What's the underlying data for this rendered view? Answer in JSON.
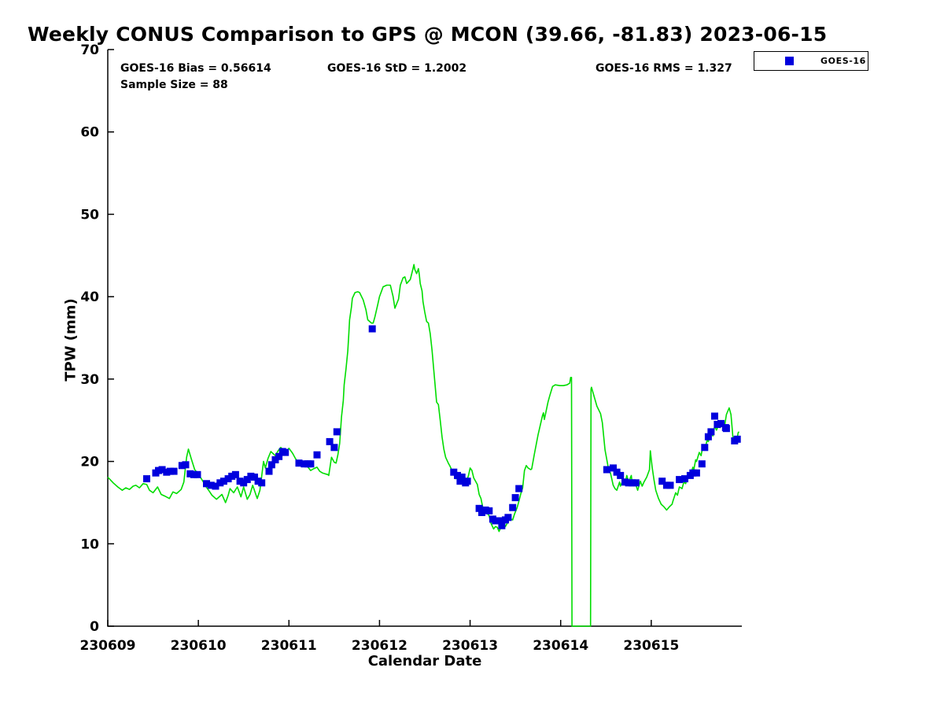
{
  "title": "Weekly CONUS Comparison to GPS @ MCON (39.66, -81.83) 2023-06-15",
  "stats": {
    "bias": "GOES-16 Bias = 0.56614",
    "std": "GOES-16 StD = 1.2002",
    "rms": "GOES-16 RMS = 1.327",
    "sample_size": "Sample Size = 88"
  },
  "legend": {
    "items": [
      {
        "label": "GOES-16",
        "marker_shape": "square",
        "marker_color": "#0000dd"
      }
    ],
    "position": "top-right"
  },
  "colors": {
    "gps_line": "#00dd00",
    "goes_marker": "#0000dd",
    "axis": "#000000",
    "background": "#ffffff"
  },
  "chart_data": {
    "type": "line",
    "title": "Weekly CONUS Comparison to GPS @ MCON (39.66, -81.83) 2023-06-15",
    "xlabel": "Calendar Date",
    "ylabel": "TPW (mm)",
    "x_unit": "days_since_230609",
    "xlim_days": [
      0,
      7
    ],
    "ylim": [
      0,
      70
    ],
    "y_ticks": [
      0,
      10,
      20,
      30,
      40,
      50,
      60,
      70
    ],
    "x_tick_days": [
      0,
      1,
      2,
      3,
      4,
      5,
      6
    ],
    "x_tick_labels": [
      "230609",
      "230610",
      "230611",
      "230612",
      "230613",
      "230614",
      "230615"
    ],
    "grid": false,
    "legend_position": "top-right-outside",
    "series": [
      {
        "name": "GPS",
        "type": "line",
        "color": "#00dd00",
        "x": [
          0.0,
          0.06,
          0.11,
          0.16,
          0.2,
          0.24,
          0.28,
          0.31,
          0.35,
          0.39,
          0.43,
          0.46,
          0.5,
          0.55,
          0.59,
          0.63,
          0.68,
          0.72,
          0.76,
          0.81,
          0.84,
          0.87,
          0.89,
          0.92,
          0.96,
          1.01,
          1.05,
          1.08,
          1.12,
          1.15,
          1.2,
          1.23,
          1.26,
          1.3,
          1.33,
          1.35,
          1.39,
          1.43,
          1.47,
          1.5,
          1.54,
          1.57,
          1.6,
          1.65,
          1.68,
          1.72,
          1.74,
          1.77,
          1.8,
          1.85,
          1.88,
          1.91,
          1.94,
          1.98,
          2.0,
          2.04,
          2.07,
          2.11,
          2.14,
          2.17,
          2.21,
          2.24,
          2.27,
          2.31,
          2.34,
          2.37,
          2.4,
          2.43,
          2.44,
          2.47,
          2.5,
          2.52,
          2.54,
          2.56,
          2.58,
          2.6,
          2.61,
          2.63,
          2.65,
          2.66,
          2.67,
          2.69,
          2.7,
          2.73,
          2.76,
          2.78,
          2.82,
          2.85,
          2.87,
          2.91,
          2.93,
          2.95,
          2.98,
          3.0,
          3.04,
          3.08,
          3.12,
          3.15,
          3.17,
          3.21,
          3.23,
          3.26,
          3.28,
          3.3,
          3.34,
          3.37,
          3.38,
          3.39,
          3.41,
          3.43,
          3.44,
          3.45,
          3.47,
          3.48,
          3.5,
          3.52,
          3.54,
          3.56,
          3.58,
          3.6,
          3.62,
          3.63,
          3.65,
          3.67,
          3.69,
          3.71,
          3.73,
          3.76,
          3.78,
          3.8,
          3.82,
          3.84,
          3.87,
          3.89,
          3.93,
          3.95,
          3.98,
          4.0,
          4.02,
          4.04,
          4.08,
          4.1,
          4.12,
          4.14,
          4.17,
          4.21,
          4.23,
          4.26,
          4.28,
          4.3,
          4.32,
          4.34,
          4.36,
          4.39,
          4.41,
          4.43,
          4.45,
          4.47,
          4.49,
          4.52,
          4.54,
          4.56,
          4.58,
          4.6,
          4.62,
          4.64,
          4.67,
          4.68,
          4.71,
          4.75,
          4.8,
          4.81,
          4.82,
          4.86,
          4.88,
          4.91,
          4.94,
          4.99,
          5.03,
          5.07,
          5.1,
          5.11,
          5.12,
          5.125,
          5.33,
          5.335,
          5.34,
          5.4,
          5.44,
          5.46,
          5.49,
          5.53,
          5.55,
          5.58,
          5.6,
          5.62,
          5.65,
          5.66,
          5.69,
          5.71,
          5.73,
          5.75,
          5.78,
          5.79,
          5.82,
          5.85,
          5.88,
          5.9,
          5.92,
          5.95,
          5.98,
          5.99,
          6.01,
          6.03,
          6.05,
          6.08,
          6.11,
          6.14,
          6.17,
          6.2,
          6.23,
          6.24,
          6.27,
          6.29,
          6.31,
          6.34,
          6.36,
          6.38,
          6.42,
          6.43,
          6.46,
          6.47,
          6.49,
          6.5,
          6.53,
          6.55,
          6.57,
          6.59,
          6.62,
          6.63,
          6.66,
          6.68,
          6.7,
          6.72,
          6.75,
          6.76,
          6.79,
          6.81,
          6.83,
          6.86,
          6.88,
          6.89,
          6.9,
          6.92,
          6.94,
          6.95,
          6.96,
          6.97
        ],
        "y": [
          18.1,
          17.4,
          16.9,
          16.5,
          16.8,
          16.6,
          17.0,
          17.1,
          16.8,
          17.3,
          17.2,
          16.5,
          16.2,
          16.9,
          16.0,
          15.8,
          15.5,
          16.3,
          16.1,
          16.6,
          17.5,
          20.5,
          21.5,
          20.4,
          19.0,
          18.3,
          17.6,
          17.0,
          16.4,
          15.9,
          15.4,
          15.7,
          16.0,
          15.0,
          15.9,
          16.7,
          16.2,
          16.9,
          15.7,
          16.9,
          15.4,
          16.0,
          17.1,
          15.5,
          16.5,
          20.0,
          19.2,
          20.4,
          21.2,
          20.7,
          21.3,
          21.7,
          21.4,
          21.3,
          21.6,
          21.0,
          20.4,
          19.7,
          19.5,
          19.7,
          19.3,
          18.9,
          19.1,
          19.3,
          18.8,
          18.6,
          18.5,
          18.4,
          18.3,
          20.5,
          19.9,
          19.8,
          20.8,
          22.2,
          25.4,
          27.4,
          29.3,
          31.2,
          33.4,
          35.3,
          37.2,
          38.7,
          39.8,
          40.5,
          40.6,
          40.5,
          39.6,
          38.4,
          37.2,
          36.8,
          36.8,
          37.6,
          39.0,
          40.0,
          41.2,
          41.4,
          41.4,
          40.0,
          38.6,
          39.7,
          41.4,
          42.3,
          42.4,
          41.6,
          42.1,
          43.4,
          43.9,
          43.3,
          42.8,
          43.4,
          42.6,
          41.6,
          40.7,
          39.4,
          38.1,
          37.0,
          36.8,
          35.5,
          33.5,
          31.0,
          28.5,
          27.2,
          26.9,
          25.0,
          23.0,
          21.5,
          20.5,
          19.8,
          19.4,
          18.9,
          18.5,
          17.9,
          18.2,
          17.5,
          17.2,
          17.4,
          18.2,
          19.2,
          18.9,
          18.0,
          17.2,
          16.0,
          15.5,
          14.4,
          14.0,
          13.4,
          12.5,
          11.8,
          12.1,
          12.0,
          11.5,
          12.0,
          12.6,
          12.1,
          12.5,
          13.2,
          13.0,
          12.9,
          13.6,
          14.4,
          15.2,
          16.1,
          16.8,
          18.9,
          19.5,
          19.2,
          19.0,
          19.1,
          20.9,
          23.2,
          25.6,
          25.9,
          25.1,
          27.2,
          28.0,
          29.1,
          29.3,
          29.2,
          29.2,
          29.3,
          29.5,
          30.2,
          30.2,
          0,
          0,
          28.8,
          29.0,
          26.7,
          25.8,
          24.7,
          21.4,
          19.0,
          18.6,
          17.1,
          16.7,
          16.5,
          17.5,
          17.0,
          17.8,
          17.3,
          18.3,
          17.5,
          18.3,
          17.3,
          17.5,
          16.5,
          17.6,
          17.0,
          17.5,
          18.1,
          19.0,
          21.3,
          19.3,
          17.8,
          16.5,
          15.5,
          14.8,
          14.5,
          14.1,
          14.5,
          14.8,
          15.2,
          16.2,
          15.9,
          16.9,
          16.7,
          17.5,
          17.3,
          18.6,
          18.3,
          19.3,
          19.0,
          20.2,
          20.0,
          21.1,
          20.7,
          21.9,
          21.4,
          22.7,
          22.4,
          23.5,
          23.1,
          24.3,
          23.8,
          24.6,
          24.1,
          24.8,
          24.3,
          25.7,
          26.5,
          25.7,
          24.5,
          23.1,
          22.2,
          23.0,
          22.9,
          23.5,
          23.6
        ]
      },
      {
        "name": "GOES-16",
        "type": "scatter",
        "marker": "square",
        "marker_size_px": 9,
        "color": "#0000dd",
        "x": [
          0.43,
          0.53,
          0.56,
          0.6,
          0.65,
          0.69,
          0.73,
          0.82,
          0.86,
          0.91,
          0.95,
          0.99,
          1.09,
          1.14,
          1.19,
          1.24,
          1.28,
          1.33,
          1.37,
          1.41,
          1.46,
          1.5,
          1.54,
          1.58,
          1.62,
          1.66,
          1.7,
          1.78,
          1.81,
          1.85,
          1.89,
          1.93,
          1.96,
          2.11,
          2.17,
          2.21,
          2.24,
          2.31,
          2.45,
          2.5,
          2.53,
          2.92,
          3.82,
          3.86,
          3.89,
          3.91,
          3.95,
          3.97,
          4.1,
          4.13,
          4.17,
          4.21,
          4.25,
          4.28,
          4.32,
          4.35,
          4.39,
          4.42,
          4.47,
          4.5,
          4.54,
          5.51,
          5.58,
          5.62,
          5.66,
          5.71,
          5.75,
          5.79,
          5.83,
          6.12,
          6.17,
          6.21,
          6.31,
          6.37,
          6.43,
          6.46,
          6.5,
          6.56,
          6.59,
          6.63,
          6.66,
          6.7,
          6.73,
          6.77,
          6.82,
          6.83,
          6.92,
          6.95
        ],
        "y": [
          17.9,
          18.6,
          18.9,
          19.0,
          18.7,
          18.8,
          18.8,
          19.5,
          19.6,
          18.5,
          18.4,
          18.4,
          17.3,
          17.1,
          17.0,
          17.4,
          17.6,
          17.9,
          18.2,
          18.4,
          17.6,
          17.4,
          17.8,
          18.2,
          18.1,
          17.6,
          17.4,
          18.8,
          19.6,
          20.2,
          20.6,
          21.2,
          21.1,
          19.8,
          19.7,
          19.7,
          19.7,
          20.8,
          22.4,
          21.7,
          23.6,
          36.1,
          18.7,
          18.3,
          17.6,
          18.1,
          17.4,
          17.6,
          14.3,
          13.8,
          14.1,
          14.0,
          13.0,
          12.8,
          12.8,
          12.2,
          12.9,
          13.2,
          14.4,
          15.6,
          16.7,
          19.0,
          19.2,
          18.7,
          18.3,
          17.5,
          17.4,
          17.4,
          17.4,
          17.6,
          17.1,
          17.1,
          17.8,
          17.9,
          18.3,
          18.6,
          18.6,
          19.7,
          21.7,
          23.0,
          23.6,
          25.5,
          24.5,
          24.6,
          24.1,
          24.0,
          22.5,
          22.7
        ]
      }
    ]
  }
}
